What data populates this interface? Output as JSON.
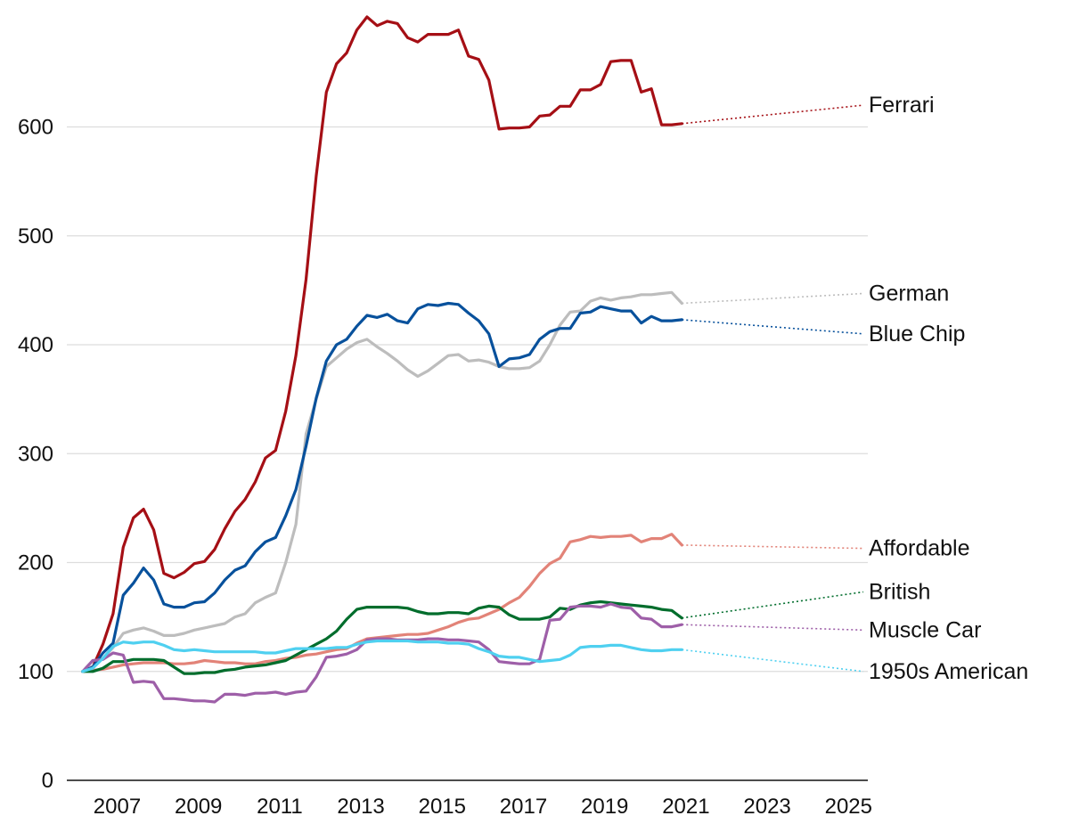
{
  "chart_data": {
    "type": "line",
    "title": "",
    "xlabel": "",
    "ylabel": "",
    "x_start": 2006.5,
    "x_step": 0.25,
    "xlim": [
      2006.3,
      2026.0
    ],
    "ylim": [
      0,
      700
    ],
    "yticks": [
      0,
      100,
      200,
      300,
      400,
      500,
      600
    ],
    "xticks": [
      2007,
      2009,
      2011,
      2013,
      2015,
      2017,
      2019,
      2021,
      2023,
      2025
    ],
    "grid": true,
    "legend": "direct labels at right end of lines",
    "series": [
      {
        "name": "Ferrari",
        "color": "#a50f15",
        "label": "Ferrari",
        "label_value": 620,
        "values": [
          100,
          104,
          125,
          153,
          214,
          241,
          249,
          230,
          190,
          186,
          191,
          199,
          201,
          212,
          231,
          247,
          258,
          274,
          296,
          303,
          339,
          390,
          460,
          555,
          632,
          658,
          668,
          689,
          701,
          693,
          697,
          695,
          682,
          678,
          685,
          685,
          685,
          689,
          665,
          662,
          643,
          598,
          599,
          599,
          600,
          610,
          611,
          619,
          619,
          634,
          634,
          639,
          660,
          661,
          661,
          632,
          635,
          602,
          602,
          603,
          620
        ]
      },
      {
        "name": "German",
        "color": "#bdbdbd",
        "label": "German",
        "label_value": 447,
        "values": [
          100,
          105,
          112,
          122,
          135,
          138,
          140,
          137,
          133,
          133,
          135,
          138,
          140,
          142,
          144,
          150,
          153,
          163,
          168,
          172,
          200,
          235,
          318,
          350,
          380,
          388,
          396,
          402,
          405,
          398,
          392,
          385,
          377,
          371,
          376,
          383,
          390,
          391,
          385,
          386,
          384,
          380,
          378,
          378,
          379,
          385,
          400,
          418,
          430,
          431,
          440,
          443,
          441,
          443,
          444,
          446,
          446,
          447,
          448,
          438,
          447
        ]
      },
      {
        "name": "Blue Chip",
        "color": "#08519c",
        "label": "Blue Chip",
        "label_value": 410,
        "values": [
          100,
          104,
          117,
          126,
          170,
          181,
          195,
          184,
          162,
          159,
          159,
          163,
          164,
          172,
          184,
          193,
          197,
          210,
          219,
          223,
          243,
          267,
          307,
          351,
          385,
          400,
          405,
          417,
          427,
          425,
          428,
          422,
          420,
          433,
          437,
          436,
          438,
          437,
          429,
          422,
          410,
          380,
          387,
          388,
          391,
          405,
          412,
          415,
          415,
          429,
          430,
          435,
          433,
          431,
          431,
          420,
          426,
          422,
          422,
          423,
          418
        ]
      },
      {
        "name": "Affordable",
        "color": "#e28378",
        "label": "Affordable",
        "label_value": 213,
        "values": [
          100,
          101,
          102,
          104,
          106,
          107,
          108,
          108,
          108,
          107,
          107,
          108,
          110,
          109,
          108,
          108,
          107,
          107,
          109,
          110,
          112,
          113,
          115,
          116,
          118,
          120,
          121,
          126,
          130,
          131,
          132,
          133,
          134,
          134,
          135,
          138,
          141,
          145,
          148,
          149,
          153,
          157,
          163,
          168,
          178,
          190,
          199,
          204,
          219,
          221,
          224,
          223,
          224,
          224,
          225,
          219,
          222,
          222,
          226,
          216,
          213
        ]
      },
      {
        "name": "British",
        "color": "#006d2c",
        "label": "British",
        "label_value": 173,
        "values": [
          100,
          100,
          103,
          109,
          109,
          111,
          111,
          111,
          110,
          104,
          98,
          98,
          99,
          99,
          101,
          102,
          104,
          105,
          106,
          108,
          110,
          115,
          120,
          125,
          130,
          137,
          148,
          157,
          159,
          159,
          159,
          159,
          158,
          155,
          153,
          153,
          154,
          154,
          153,
          158,
          160,
          159,
          152,
          148,
          148,
          148,
          150,
          158,
          157,
          161,
          163,
          164,
          163,
          162,
          161,
          160,
          159,
          157,
          156,
          149,
          173
        ]
      },
      {
        "name": "Muscle Car",
        "color": "#9e5fa8",
        "label": "Muscle Car",
        "label_value": 138,
        "values": [
          100,
          110,
          111,
          117,
          115,
          90,
          91,
          90,
          75,
          75,
          74,
          73,
          73,
          72,
          79,
          79,
          78,
          80,
          80,
          81,
          79,
          81,
          82,
          95,
          113,
          114,
          116,
          120,
          129,
          130,
          130,
          129,
          129,
          129,
          130,
          130,
          129,
          129,
          128,
          127,
          120,
          109,
          108,
          107,
          107,
          111,
          147,
          148,
          159,
          160,
          160,
          159,
          162,
          159,
          158,
          149,
          148,
          141,
          141,
          143,
          138
        ]
      },
      {
        "name": "1950s American",
        "color": "#4fd0f0",
        "label": "1950s American",
        "label_value": 100,
        "values": [
          100,
          103,
          112,
          123,
          127,
          126,
          127,
          127,
          124,
          120,
          119,
          120,
          119,
          118,
          118,
          118,
          118,
          118,
          117,
          117,
          119,
          121,
          121,
          121,
          121,
          122,
          122,
          125,
          127,
          128,
          128,
          128,
          128,
          127,
          127,
          127,
          126,
          126,
          125,
          121,
          118,
          114,
          113,
          113,
          111,
          109,
          110,
          111,
          115,
          122,
          123,
          123,
          124,
          124,
          122,
          120,
          119,
          119,
          120,
          120,
          100
        ]
      }
    ]
  }
}
